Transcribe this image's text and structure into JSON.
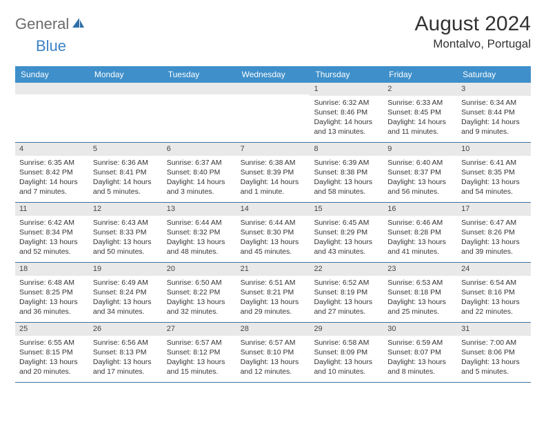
{
  "logo": {
    "text1": "General",
    "text2": "Blue"
  },
  "title": "August 2024",
  "location": "Montalvo, Portugal",
  "colors": {
    "header_bg": "#3e8fca",
    "header_text": "#ffffff",
    "row_border": "#3e6fa0",
    "daynum_bg": "#e9e9e9",
    "logo_gray": "#6b6b6b",
    "logo_blue": "#3b82c4"
  },
  "day_headers": [
    "Sunday",
    "Monday",
    "Tuesday",
    "Wednesday",
    "Thursday",
    "Friday",
    "Saturday"
  ],
  "weeks": [
    [
      {
        "n": "",
        "sr": "",
        "ss": "",
        "dl": ""
      },
      {
        "n": "",
        "sr": "",
        "ss": "",
        "dl": ""
      },
      {
        "n": "",
        "sr": "",
        "ss": "",
        "dl": ""
      },
      {
        "n": "",
        "sr": "",
        "ss": "",
        "dl": ""
      },
      {
        "n": "1",
        "sr": "Sunrise: 6:32 AM",
        "ss": "Sunset: 8:46 PM",
        "dl": "Daylight: 14 hours and 13 minutes."
      },
      {
        "n": "2",
        "sr": "Sunrise: 6:33 AM",
        "ss": "Sunset: 8:45 PM",
        "dl": "Daylight: 14 hours and 11 minutes."
      },
      {
        "n": "3",
        "sr": "Sunrise: 6:34 AM",
        "ss": "Sunset: 8:44 PM",
        "dl": "Daylight: 14 hours and 9 minutes."
      }
    ],
    [
      {
        "n": "4",
        "sr": "Sunrise: 6:35 AM",
        "ss": "Sunset: 8:42 PM",
        "dl": "Daylight: 14 hours and 7 minutes."
      },
      {
        "n": "5",
        "sr": "Sunrise: 6:36 AM",
        "ss": "Sunset: 8:41 PM",
        "dl": "Daylight: 14 hours and 5 minutes."
      },
      {
        "n": "6",
        "sr": "Sunrise: 6:37 AM",
        "ss": "Sunset: 8:40 PM",
        "dl": "Daylight: 14 hours and 3 minutes."
      },
      {
        "n": "7",
        "sr": "Sunrise: 6:38 AM",
        "ss": "Sunset: 8:39 PM",
        "dl": "Daylight: 14 hours and 1 minute."
      },
      {
        "n": "8",
        "sr": "Sunrise: 6:39 AM",
        "ss": "Sunset: 8:38 PM",
        "dl": "Daylight: 13 hours and 58 minutes."
      },
      {
        "n": "9",
        "sr": "Sunrise: 6:40 AM",
        "ss": "Sunset: 8:37 PM",
        "dl": "Daylight: 13 hours and 56 minutes."
      },
      {
        "n": "10",
        "sr": "Sunrise: 6:41 AM",
        "ss": "Sunset: 8:35 PM",
        "dl": "Daylight: 13 hours and 54 minutes."
      }
    ],
    [
      {
        "n": "11",
        "sr": "Sunrise: 6:42 AM",
        "ss": "Sunset: 8:34 PM",
        "dl": "Daylight: 13 hours and 52 minutes."
      },
      {
        "n": "12",
        "sr": "Sunrise: 6:43 AM",
        "ss": "Sunset: 8:33 PM",
        "dl": "Daylight: 13 hours and 50 minutes."
      },
      {
        "n": "13",
        "sr": "Sunrise: 6:44 AM",
        "ss": "Sunset: 8:32 PM",
        "dl": "Daylight: 13 hours and 48 minutes."
      },
      {
        "n": "14",
        "sr": "Sunrise: 6:44 AM",
        "ss": "Sunset: 8:30 PM",
        "dl": "Daylight: 13 hours and 45 minutes."
      },
      {
        "n": "15",
        "sr": "Sunrise: 6:45 AM",
        "ss": "Sunset: 8:29 PM",
        "dl": "Daylight: 13 hours and 43 minutes."
      },
      {
        "n": "16",
        "sr": "Sunrise: 6:46 AM",
        "ss": "Sunset: 8:28 PM",
        "dl": "Daylight: 13 hours and 41 minutes."
      },
      {
        "n": "17",
        "sr": "Sunrise: 6:47 AM",
        "ss": "Sunset: 8:26 PM",
        "dl": "Daylight: 13 hours and 39 minutes."
      }
    ],
    [
      {
        "n": "18",
        "sr": "Sunrise: 6:48 AM",
        "ss": "Sunset: 8:25 PM",
        "dl": "Daylight: 13 hours and 36 minutes."
      },
      {
        "n": "19",
        "sr": "Sunrise: 6:49 AM",
        "ss": "Sunset: 8:24 PM",
        "dl": "Daylight: 13 hours and 34 minutes."
      },
      {
        "n": "20",
        "sr": "Sunrise: 6:50 AM",
        "ss": "Sunset: 8:22 PM",
        "dl": "Daylight: 13 hours and 32 minutes."
      },
      {
        "n": "21",
        "sr": "Sunrise: 6:51 AM",
        "ss": "Sunset: 8:21 PM",
        "dl": "Daylight: 13 hours and 29 minutes."
      },
      {
        "n": "22",
        "sr": "Sunrise: 6:52 AM",
        "ss": "Sunset: 8:19 PM",
        "dl": "Daylight: 13 hours and 27 minutes."
      },
      {
        "n": "23",
        "sr": "Sunrise: 6:53 AM",
        "ss": "Sunset: 8:18 PM",
        "dl": "Daylight: 13 hours and 25 minutes."
      },
      {
        "n": "24",
        "sr": "Sunrise: 6:54 AM",
        "ss": "Sunset: 8:16 PM",
        "dl": "Daylight: 13 hours and 22 minutes."
      }
    ],
    [
      {
        "n": "25",
        "sr": "Sunrise: 6:55 AM",
        "ss": "Sunset: 8:15 PM",
        "dl": "Daylight: 13 hours and 20 minutes."
      },
      {
        "n": "26",
        "sr": "Sunrise: 6:56 AM",
        "ss": "Sunset: 8:13 PM",
        "dl": "Daylight: 13 hours and 17 minutes."
      },
      {
        "n": "27",
        "sr": "Sunrise: 6:57 AM",
        "ss": "Sunset: 8:12 PM",
        "dl": "Daylight: 13 hours and 15 minutes."
      },
      {
        "n": "28",
        "sr": "Sunrise: 6:57 AM",
        "ss": "Sunset: 8:10 PM",
        "dl": "Daylight: 13 hours and 12 minutes."
      },
      {
        "n": "29",
        "sr": "Sunrise: 6:58 AM",
        "ss": "Sunset: 8:09 PM",
        "dl": "Daylight: 13 hours and 10 minutes."
      },
      {
        "n": "30",
        "sr": "Sunrise: 6:59 AM",
        "ss": "Sunset: 8:07 PM",
        "dl": "Daylight: 13 hours and 8 minutes."
      },
      {
        "n": "31",
        "sr": "Sunrise: 7:00 AM",
        "ss": "Sunset: 8:06 PM",
        "dl": "Daylight: 13 hours and 5 minutes."
      }
    ]
  ]
}
